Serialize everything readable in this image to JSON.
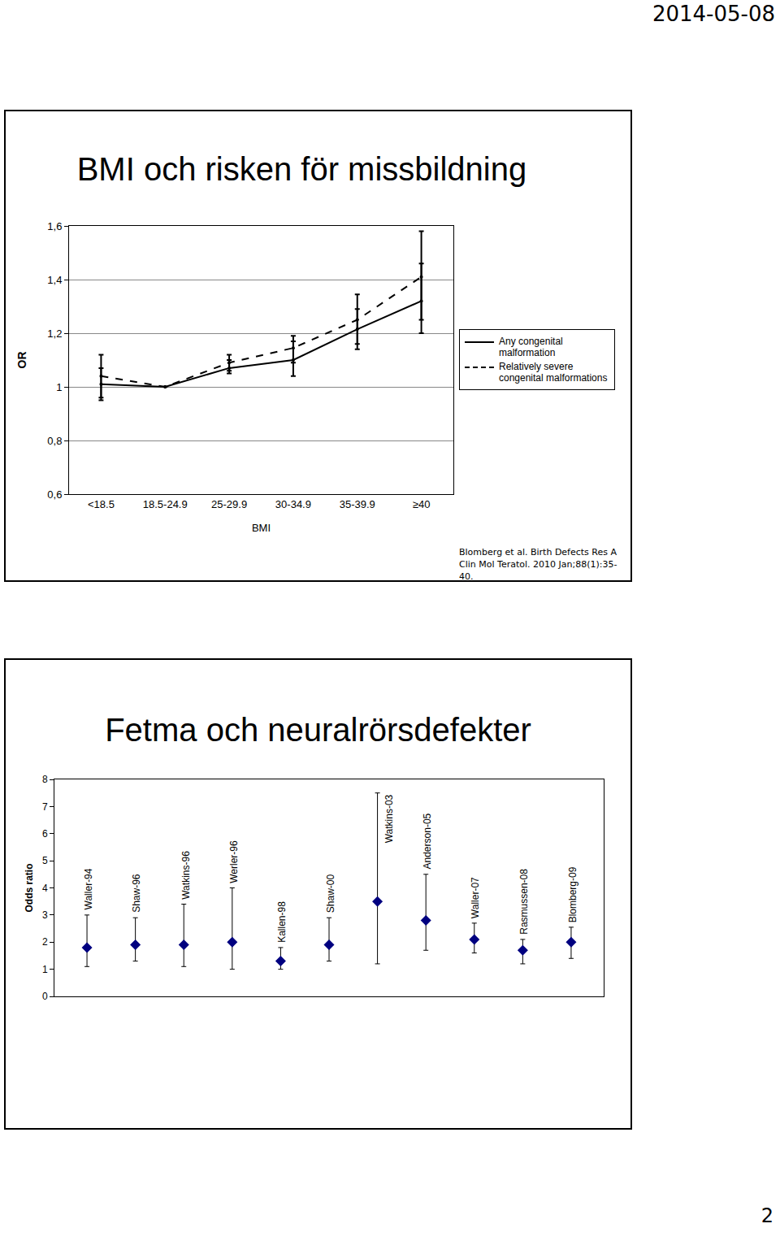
{
  "header": {
    "date": "2014-05-08"
  },
  "footer": {
    "page": "2"
  },
  "chart_data": [
    {
      "type": "line",
      "title": "BMI och risken för missbildning",
      "x_label": "BMI",
      "y_label": "OR",
      "categories": [
        "<18.5",
        "18.5-24.9",
        "25-29.9",
        "30-34.9",
        "35-39.9",
        "≥40"
      ],
      "series": [
        {
          "name": "Any congenital malformation",
          "color": "#000000",
          "line_style": "solid",
          "values": [
            1.01,
            1.0,
            1.07,
            1.1,
            1.215,
            1.32
          ],
          "ci_low": [
            0.95,
            null,
            1.05,
            1.04,
            1.14,
            1.2
          ],
          "ci_high": [
            1.07,
            null,
            1.1,
            1.17,
            1.29,
            1.46
          ]
        },
        {
          "name": "Relatively severe congenital malformations",
          "color": "#000000",
          "line_style": "dash",
          "values": [
            1.04,
            1.0,
            1.09,
            1.145,
            1.25,
            1.41
          ],
          "ci_low": [
            0.96,
            null,
            1.06,
            1.09,
            1.16,
            1.25
          ],
          "ci_high": [
            1.12,
            null,
            1.12,
            1.19,
            1.345,
            1.58
          ]
        }
      ],
      "ylim": [
        0.6,
        1.6
      ],
      "yticks": [
        {
          "value": 0.6,
          "label": "0,6"
        },
        {
          "value": 0.8,
          "label": "0,8"
        },
        1,
        {
          "value": 1.2,
          "label": "1,2"
        },
        {
          "value": 1.4,
          "label": "1,4"
        },
        {
          "value": 1.6,
          "label": "1,6"
        }
      ],
      "grid": true,
      "legend": "right",
      "source": "Blomberg et al. Birth Defects Res A Clin Mol Teratol. 2010 Jan;88(1):35-40."
    },
    {
      "type": "scatter",
      "title": "Fetma och neuralrörsdefekter",
      "y_label": "Odds ratio",
      "categories": [
        "Waller-94",
        "Shaw-96",
        "Watkins-96",
        "Werler-96",
        "Kallen-98",
        "Shaw-00",
        "Watkins-03",
        "Anderson-05",
        "Waller-07",
        "Rasmussen-08",
        "Blomberg-09"
      ],
      "values": [
        1.8,
        1.9,
        1.9,
        2.0,
        1.3,
        1.9,
        3.5,
        2.8,
        2.1,
        1.7,
        2.0
      ],
      "ci_low": [
        1.1,
        1.3,
        1.1,
        1.0,
        1.0,
        1.3,
        1.2,
        1.7,
        1.6,
        1.2,
        1.4
      ],
      "ci_high": [
        3.0,
        2.9,
        3.4,
        4.0,
        1.8,
        2.9,
        7.5,
        4.5,
        2.7,
        2.1,
        2.55
      ],
      "color": "#000080",
      "marker": "diamond",
      "ylim": [
        0,
        8
      ],
      "yticks": [
        0,
        1,
        2,
        3,
        4,
        5,
        6,
        7,
        8
      ],
      "grid": false,
      "tick_labels": "y"
    }
  ]
}
